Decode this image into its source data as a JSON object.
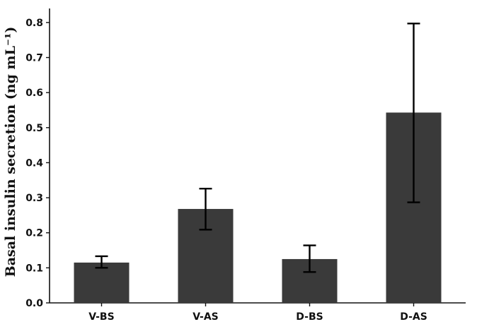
{
  "chart_data": {
    "type": "bar",
    "title": "",
    "xlabel": "",
    "ylabel": "Basal insulin secretion (ng mL⁻¹)",
    "categories": [
      "V-BS",
      "V-AS",
      "D-BS",
      "D-AS"
    ],
    "series": [
      {
        "values": [
          0.115,
          0.268,
          0.125,
          0.543
        ],
        "error_low": [
          0.1,
          0.209,
          0.088,
          0.287
        ],
        "error_high": [
          0.133,
          0.326,
          0.164,
          0.797
        ]
      }
    ],
    "ylim": [
      0,
      0.84
    ],
    "yticks": [
      "0.0",
      "0.1",
      "0.2",
      "0.3",
      "0.4",
      "0.5",
      "0.6",
      "0.7",
      "0.8"
    ],
    "bar_color": "#3a3a3a",
    "grid": false,
    "legend": "none"
  }
}
